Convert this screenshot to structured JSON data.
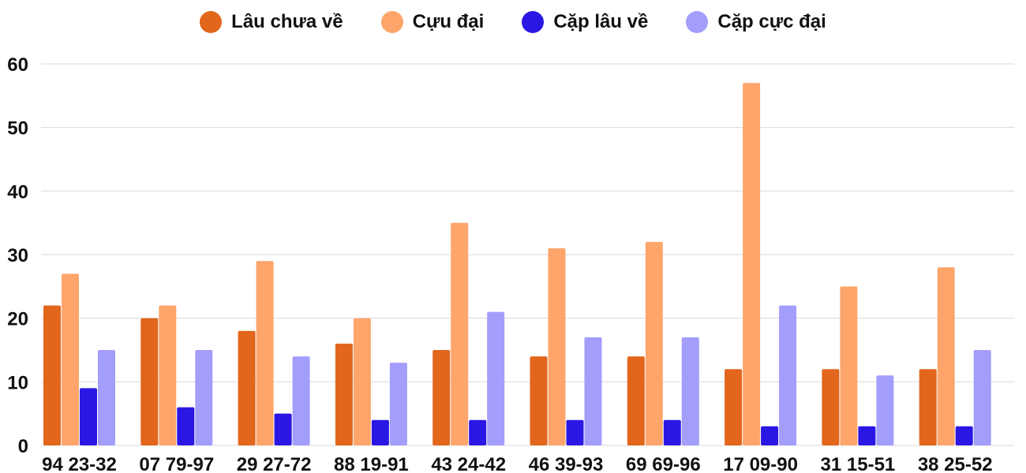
{
  "chart_data": {
    "type": "bar",
    "categories": [
      "94 23-32",
      "07 79-97",
      "29 27-72",
      "88 19-91",
      "43 24-42",
      "46 39-93",
      "69 69-96",
      "17 09-90",
      "31 15-51",
      "38 25-52"
    ],
    "series": [
      {
        "name": "Lâu chưa về",
        "color": "#e2661c",
        "values": [
          22,
          20,
          18,
          16,
          15,
          14,
          14,
          12,
          12,
          12
        ]
      },
      {
        "name": "Cựu đại",
        "color": "#fea56b",
        "values": [
          27,
          22,
          29,
          20,
          35,
          31,
          32,
          57,
          25,
          28
        ]
      },
      {
        "name": "Cặp lâu về",
        "color": "#2a17e4",
        "values": [
          9,
          6,
          5,
          4,
          4,
          4,
          4,
          3,
          3,
          3
        ]
      },
      {
        "name": "Cặp cực đại",
        "color": "#a39dfb",
        "values": [
          15,
          15,
          14,
          13,
          21,
          17,
          17,
          22,
          11,
          15
        ]
      }
    ],
    "yticks": [
      "0",
      "10",
      "20",
      "30",
      "40",
      "50",
      "60"
    ],
    "ylim": [
      0,
      60
    ],
    "grid": true,
    "legend": "top-center"
  }
}
